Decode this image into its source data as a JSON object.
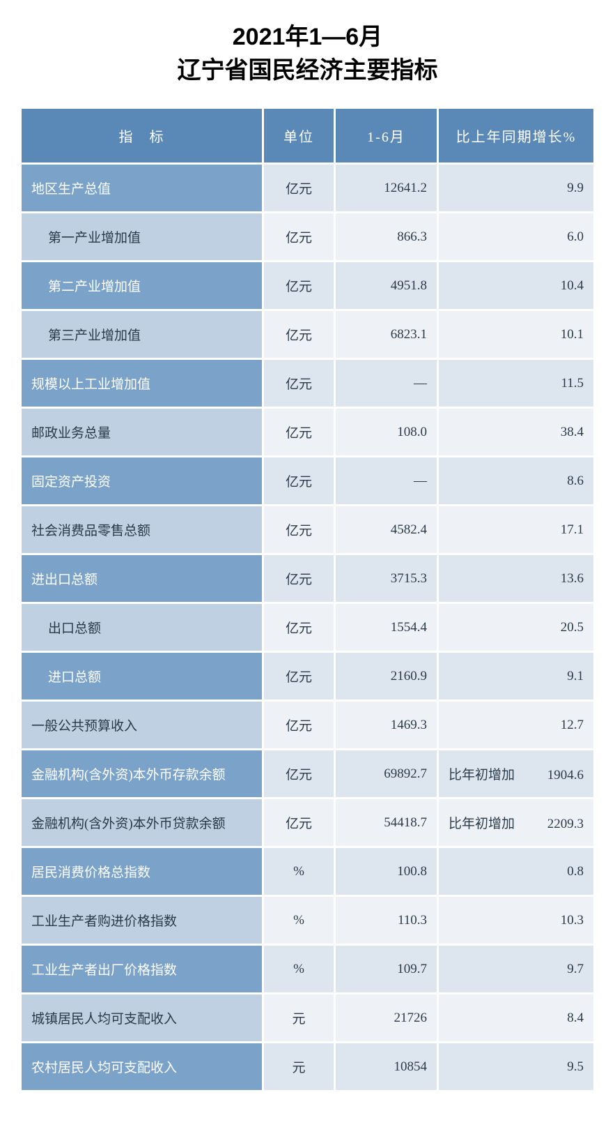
{
  "title_line1": "2021年1—6月",
  "title_line2": "辽宁省国民经济主要指标",
  "headers": {
    "indicator": "指　标",
    "unit": "单位",
    "value": "1-6月",
    "growth": "比上年同期增长%"
  },
  "colors": {
    "header_bg": "#5b89b7",
    "odd_indicator_bg": "#7ba3ca",
    "even_indicator_bg": "#bed0e2",
    "odd_data_bg": "#dde5ee",
    "even_data_bg": "#eef2f7",
    "header_text": "#ffffff",
    "body_text": "#2b3a4a"
  },
  "rows": [
    {
      "indicator": "地区生产总值",
      "indent": false,
      "unit": "亿元",
      "value": "12641.2",
      "growth": "9.9",
      "growth_prefix": ""
    },
    {
      "indicator": "第一产业增加值",
      "indent": true,
      "unit": "亿元",
      "value": "866.3",
      "growth": "6.0",
      "growth_prefix": ""
    },
    {
      "indicator": "第二产业增加值",
      "indent": true,
      "unit": "亿元",
      "value": "4951.8",
      "growth": "10.4",
      "growth_prefix": ""
    },
    {
      "indicator": "第三产业增加值",
      "indent": true,
      "unit": "亿元",
      "value": "6823.1",
      "growth": "10.1",
      "growth_prefix": ""
    },
    {
      "indicator": "规模以上工业增加值",
      "indent": false,
      "unit": "亿元",
      "value": "—",
      "growth": "11.5",
      "growth_prefix": ""
    },
    {
      "indicator": "邮政业务总量",
      "indent": false,
      "unit": "亿元",
      "value": "108.0",
      "growth": "38.4",
      "growth_prefix": ""
    },
    {
      "indicator": "固定资产投资",
      "indent": false,
      "unit": "亿元",
      "value": "—",
      "growth": "8.6",
      "growth_prefix": ""
    },
    {
      "indicator": "社会消费品零售总额",
      "indent": false,
      "unit": "亿元",
      "value": "4582.4",
      "growth": "17.1",
      "growth_prefix": ""
    },
    {
      "indicator": "进出口总额",
      "indent": false,
      "unit": "亿元",
      "value": "3715.3",
      "growth": "13.6",
      "growth_prefix": ""
    },
    {
      "indicator": "出口总额",
      "indent": true,
      "unit": "亿元",
      "value": "1554.4",
      "growth": "20.5",
      "growth_prefix": ""
    },
    {
      "indicator": "进口总额",
      "indent": true,
      "unit": "亿元",
      "value": "2160.9",
      "growth": "9.1",
      "growth_prefix": ""
    },
    {
      "indicator": "一般公共预算收入",
      "indent": false,
      "unit": "亿元",
      "value": "1469.3",
      "growth": "12.7",
      "growth_prefix": ""
    },
    {
      "indicator": "金融机构(含外资)本外币存款余额",
      "indent": false,
      "unit": "亿元",
      "value": "69892.7",
      "growth": "1904.6",
      "growth_prefix": "比年初增加"
    },
    {
      "indicator": "金融机构(含外资)本外币贷款余额",
      "indent": false,
      "unit": "亿元",
      "value": "54418.7",
      "growth": "2209.3",
      "growth_prefix": "比年初增加"
    },
    {
      "indicator": "居民消费价格总指数",
      "indent": false,
      "unit": "%",
      "value": "100.8",
      "growth": "0.8",
      "growth_prefix": ""
    },
    {
      "indicator": "工业生产者购进价格指数",
      "indent": false,
      "unit": "%",
      "value": "110.3",
      "growth": "10.3",
      "growth_prefix": ""
    },
    {
      "indicator": "工业生产者出厂价格指数",
      "indent": false,
      "unit": "%",
      "value": "109.7",
      "growth": "9.7",
      "growth_prefix": ""
    },
    {
      "indicator": "城镇居民人均可支配收入",
      "indent": false,
      "unit": "元",
      "value": "21726",
      "growth": "8.4",
      "growth_prefix": ""
    },
    {
      "indicator": "农村居民人均可支配收入",
      "indent": false,
      "unit": "元",
      "value": "10854",
      "growth": "9.5",
      "growth_prefix": ""
    }
  ]
}
